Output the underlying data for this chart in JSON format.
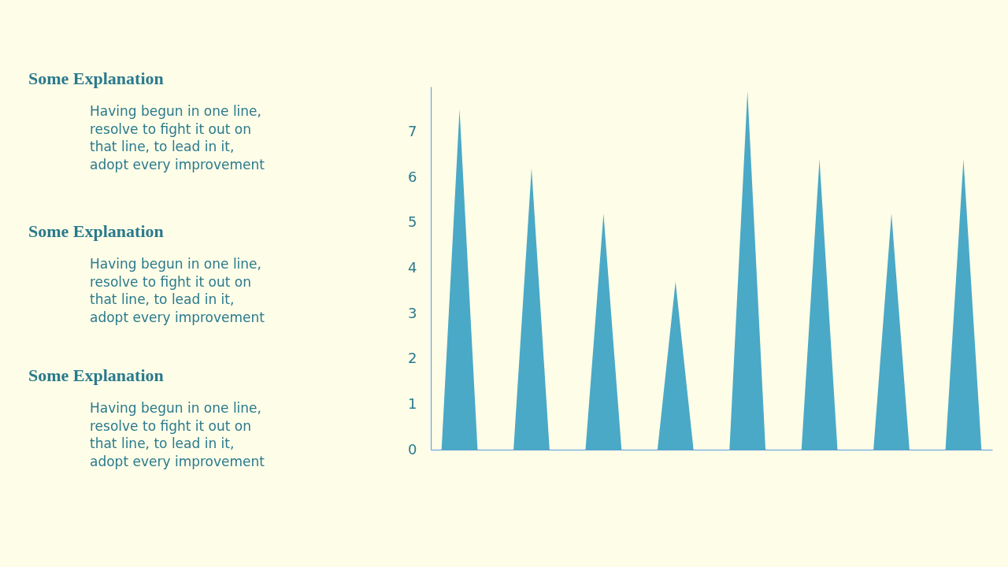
{
  "chart_data": {
    "type": "area",
    "categories": [
      null,
      null,
      null,
      null,
      null,
      null,
      null,
      null,
      null,
      null,
      null,
      null,
      null,
      null,
      null,
      null,
      null,
      null,
      null,
      null,
      null,
      null,
      null,
      null,
      null,
      null,
      null,
      null,
      null,
      null,
      null
    ],
    "values": [
      0,
      7.5,
      0,
      null,
      0,
      6.2,
      0,
      null,
      0,
      5.2,
      0,
      null,
      0,
      3.7,
      0,
      null,
      0,
      7.9,
      0,
      null,
      0,
      6.4,
      0,
      null,
      0,
      5.2,
      0,
      null,
      0,
      6.4,
      0
    ],
    "color": "#4aa9c6",
    "ylim": [
      0,
      8
    ],
    "yticks": [
      0,
      1,
      2,
      3,
      4,
      5,
      6,
      7
    ],
    "grid": false,
    "annotations": [
      "Some  Explanation",
      "Having begun in one line, resolve to fight it out on that line, to lead in it, adopt every improvement",
      "Some  Explanation",
      "Having begun in one line, resolve to fight it out on that line, to lead in it, adopt every improvement",
      "Some  Explanation",
      "Having begun in one line, resolve to fight it out on that line, to lead in it, adopt every improvement"
    ]
  }
}
